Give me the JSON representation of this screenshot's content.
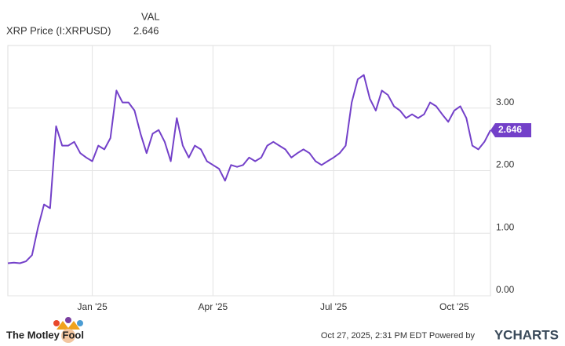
{
  "chart_data": {
    "type": "line",
    "legend_title": "VAL",
    "categories": [
      null,
      null,
      null,
      null,
      null,
      null,
      null,
      null,
      null,
      null,
      null,
      null,
      null,
      null,
      "Jan '25",
      null,
      null,
      null,
      null,
      null,
      null,
      null,
      null,
      null,
      null,
      null,
      null,
      null,
      null,
      null,
      null,
      null,
      null,
      null,
      "Apr '25",
      null,
      null,
      null,
      null,
      null,
      null,
      null,
      null,
      null,
      null,
      null,
      null,
      null,
      null,
      null,
      null,
      null,
      null,
      null,
      "Jul '25",
      null,
      null,
      null,
      null,
      null,
      null,
      null,
      null,
      null,
      null,
      null,
      null,
      null,
      null,
      null,
      null,
      null,
      null,
      null,
      "Oct '25",
      null,
      null,
      null,
      null,
      null,
      null
    ],
    "series": [
      {
        "name": "XRP Price (I:XRPUSD)",
        "color": "#7340c9",
        "values": [
          0.52,
          0.53,
          0.52,
          0.55,
          0.65,
          1.09,
          1.46,
          1.4,
          2.71,
          2.4,
          2.4,
          2.46,
          2.28,
          2.21,
          2.15,
          2.4,
          2.34,
          2.52,
          3.28,
          3.09,
          3.09,
          2.96,
          2.59,
          2.28,
          2.59,
          2.65,
          2.46,
          2.15,
          2.84,
          2.4,
          2.21,
          2.4,
          2.34,
          2.15,
          2.09,
          2.03,
          1.84,
          2.09,
          2.06,
          2.09,
          2.21,
          2.15,
          2.21,
          2.4,
          2.46,
          2.4,
          2.34,
          2.21,
          2.28,
          2.34,
          2.28,
          2.15,
          2.09,
          2.15,
          2.21,
          2.28,
          2.4,
          3.09,
          3.46,
          3.53,
          3.15,
          2.96,
          3.28,
          3.21,
          3.03,
          2.96,
          2.84,
          2.9,
          2.84,
          2.9,
          3.09,
          3.03,
          2.9,
          2.78,
          2.96,
          3.03,
          2.84,
          2.4,
          2.34,
          2.46,
          2.646
        ]
      }
    ],
    "ylim": [
      0,
      4
    ],
    "yticks": [
      {
        "value": 0,
        "label": "0.00"
      },
      {
        "value": 1,
        "label": "1.00"
      },
      {
        "value": 2,
        "label": "2.00"
      },
      {
        "value": 3,
        "label": "3.00"
      }
    ],
    "grid": true
  },
  "footer": {
    "timestamp": "Oct 27, 2025, 2:31 PM EDT Powered by",
    "provider": "YCHARTS",
    "brand": "The Motley Fool"
  }
}
